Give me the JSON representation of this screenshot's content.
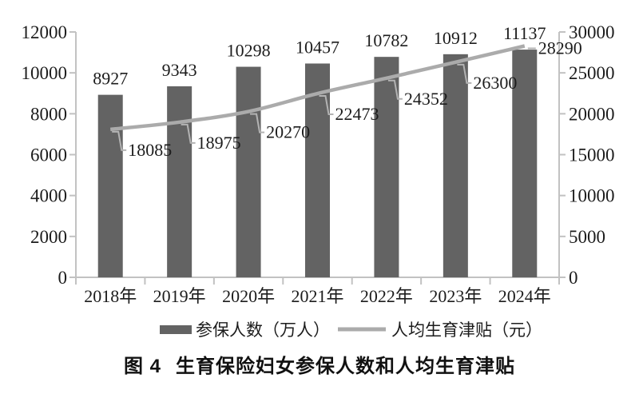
{
  "caption": {
    "label": "图 4",
    "title": "生育保险妇女参保人数和人均生育津贴"
  },
  "colors": {
    "bar": "#636363",
    "line": "#ababab",
    "axis": "#c2c2c2",
    "leader": "#b3b3b3",
    "text": "#1c1c1c",
    "background": "#ffffff"
  },
  "chart_data": {
    "type": "bar",
    "subtype": "bar-line-combo",
    "title": "图 4　生育保险妇女参保人数和人均生育津贴",
    "categories": [
      "2018年",
      "2019年",
      "2020年",
      "2021年",
      "2022年",
      "2023年",
      "2024年"
    ],
    "series": [
      {
        "name": "参保人数（万人）",
        "type": "bar",
        "axis": "left",
        "color": "#636363",
        "values": [
          8927,
          9343,
          10298,
          10457,
          10782,
          10912,
          11137
        ]
      },
      {
        "name": "人均生育津贴（元）",
        "type": "line",
        "axis": "right",
        "color": "#ababab",
        "values": [
          18085,
          18975,
          20270,
          22473,
          24352,
          26300,
          28290
        ]
      }
    ],
    "left_axis": {
      "min": 0,
      "max": 12000,
      "step": 2000,
      "ticks": [
        "0",
        "2000",
        "4000",
        "6000",
        "8000",
        "10000",
        "12000"
      ]
    },
    "right_axis": {
      "min": 0,
      "max": 30000,
      "step": 5000,
      "ticks": [
        "0",
        "5000",
        "10000",
        "15000",
        "20000",
        "25000",
        "30000"
      ]
    },
    "grid": false,
    "legend_position": "bottom",
    "data_labels": true
  }
}
